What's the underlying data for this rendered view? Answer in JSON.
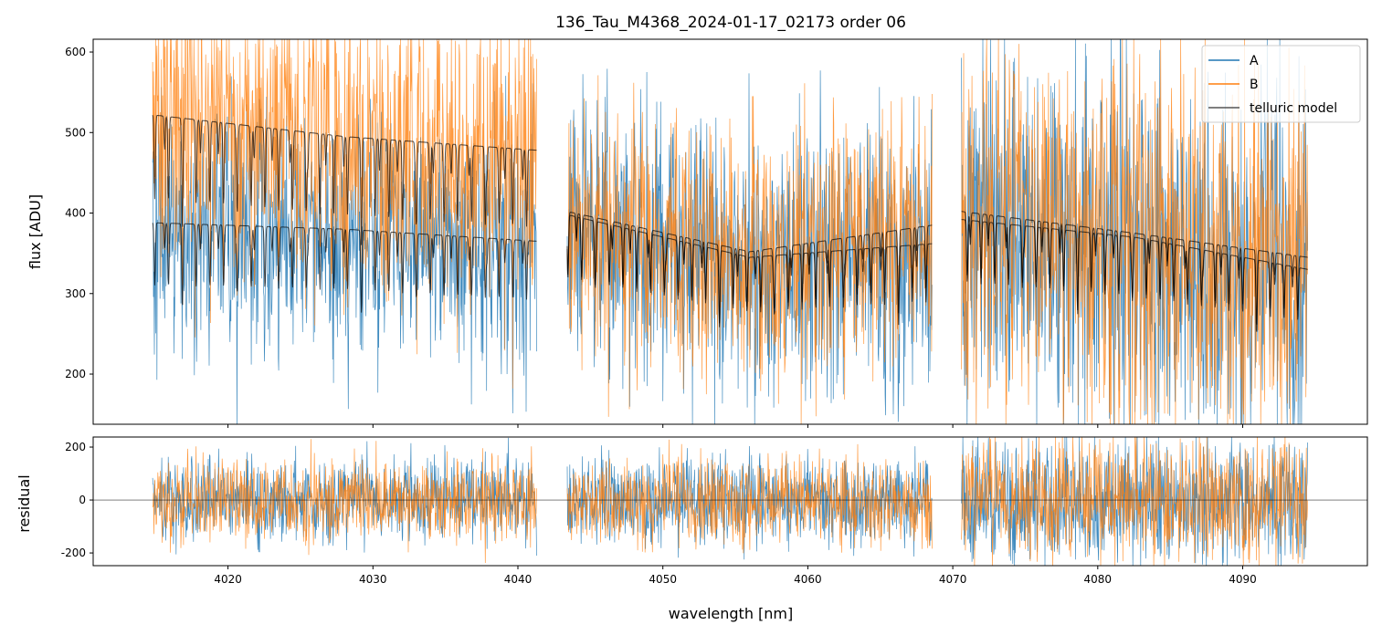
{
  "chart_data": {
    "type": "line",
    "title": "136_Tau_M4368_2024-01-17_02173  order 06",
    "xlabel": "wavelength [nm]",
    "top": {
      "ylabel": "flux [ADU]",
      "xlim": [
        4010.7,
        4098.6
      ],
      "ylim": [
        137.7,
        615.9
      ],
      "yticks": [
        200,
        300,
        400,
        500,
        600
      ]
    },
    "bottom": {
      "ylabel": "residual",
      "xlim": [
        4010.7,
        4098.6
      ],
      "ylim": [
        -248,
        238
      ],
      "yticks": [
        -200,
        0,
        200
      ],
      "xticks": [
        4020,
        4030,
        4040,
        4050,
        4060,
        4070,
        4080,
        4090
      ]
    },
    "legend": {
      "placement": "top-right",
      "entries": [
        "A",
        "B",
        "telluric model"
      ]
    },
    "colors": {
      "A": "#1f77b4",
      "B": "#ff7f0e",
      "model": "#000000"
    },
    "segments": [
      {
        "range": [
          4014.8,
          4041.3
        ],
        "A_model": [
          388,
          380,
          365
        ],
        "B_model": [
          522,
          495,
          478
        ],
        "A_noise": 75,
        "B_noise": 95,
        "res_noise": 80
      },
      {
        "range": [
          4043.4,
          4068.6
        ],
        "A_model": [
          398,
          345,
          362
        ],
        "B_model": [
          402,
          352,
          385
        ],
        "A_noise": 85,
        "B_noise": 80,
        "res_noise": 85
      },
      {
        "range": [
          4070.6,
          4094.5
        ],
        "A_model": [
          392,
          370,
          330
        ],
        "B_model": [
          402,
          375,
          345
        ],
        "A_noise": 120,
        "B_noise": 120,
        "res_noise": 120
      }
    ],
    "telluric_line_spacing_nm": 0.95,
    "telluric_line_depth": 0.2
  }
}
